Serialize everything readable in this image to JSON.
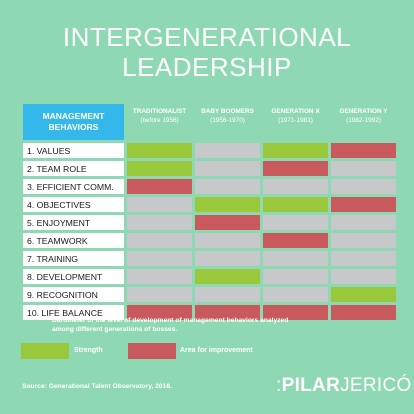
{
  "title": {
    "line1": "INTERGENERATIONAL",
    "line2": "LEADERSHIP"
  },
  "header": {
    "main_line1": "MANAGEMENT",
    "main_line2": "BEHAVIORS",
    "generations": [
      {
        "name": "TRADITIONALIST",
        "years": "(before 1956)"
      },
      {
        "name": "BABY BOOMERS",
        "years": "(1956-1970)"
      },
      {
        "name": "GENERATION X",
        "years": "(1971-1981)"
      },
      {
        "name": "GENERATION Y",
        "years": "(1982-1992)"
      }
    ]
  },
  "rows": [
    {
      "label": "1. VALUES",
      "cells": [
        "strength",
        "neutral",
        "strength",
        "improvement"
      ]
    },
    {
      "label": "2. TEAM ROLE",
      "cells": [
        "strength",
        "neutral",
        "improvement",
        "neutral"
      ]
    },
    {
      "label": "3. EFFICIENT COMM.",
      "cells": [
        "improvement",
        "neutral",
        "neutral",
        "neutral"
      ]
    },
    {
      "label": "4. OBJECTIVES",
      "cells": [
        "neutral",
        "strength",
        "strength",
        "improvement"
      ]
    },
    {
      "label": "5. ENJOYMENT",
      "cells": [
        "neutral",
        "improvement",
        "neutral",
        "neutral"
      ]
    },
    {
      "label": "6. TEAMWORK",
      "cells": [
        "neutral",
        "neutral",
        "improvement",
        "neutral"
      ]
    },
    {
      "label": "7. TRAINING",
      "cells": [
        "neutral",
        "neutral",
        "neutral",
        "neutral"
      ]
    },
    {
      "label": "8. DEVELOPMENT",
      "cells": [
        "neutral",
        "strength",
        "neutral",
        "neutral"
      ]
    },
    {
      "label": "9. RECOGNITION",
      "cells": [
        "neutral",
        "neutral",
        "neutral",
        "strength"
      ]
    },
    {
      "label": "10. LIFE BALANCE",
      "cells": [
        "improvement",
        "improvement",
        "improvement",
        "improvement"
      ]
    }
  ],
  "caption": {
    "line1": "Barometer of the level of development of management behaviors analyzed",
    "line2": "among different generations of bosses."
  },
  "legend": {
    "strength": "Strength",
    "improvement": "Area for improvement"
  },
  "colors": {
    "strength": "#99c83d",
    "improvement": "#c85a5d",
    "neutral": "#c7c8ca",
    "background": "#8ed9b3",
    "header": "#34b7ea"
  },
  "source": "Source: Generational Talent Observatory, 2018.",
  "logo": {
    "prefix": ":",
    "bold": "PILAR",
    "regular": "JERICÓ"
  }
}
